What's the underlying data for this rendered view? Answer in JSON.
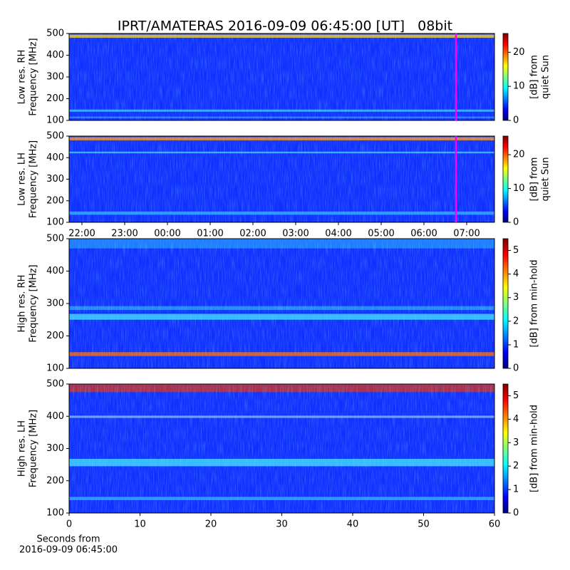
{
  "chart_data": [
    {
      "type": "heatmap",
      "title": "IPRT/AMATERAS 2016-09-09 06:45:00 [UT]   08bit",
      "ylabel": [
        "Low res. RH",
        "Frequency [MHz]"
      ],
      "ylim": [
        100,
        500
      ],
      "yticks": [
        100,
        200,
        300,
        400,
        500
      ],
      "xlim": [
        21.7,
        31.65
      ],
      "marker_x": 30.75,
      "marker_color": "#ff00ff",
      "clabel": [
        "[dB] from",
        "quiet Sun"
      ],
      "clim": [
        0,
        25.5
      ],
      "cticks": [
        0,
        10,
        20
      ]
    },
    {
      "type": "heatmap",
      "ylabel": [
        "Low res. LH",
        "Frequency [MHz]"
      ],
      "ylim": [
        100,
        500
      ],
      "yticks": [
        100,
        200,
        300,
        400,
        500
      ],
      "xlim": [
        21.7,
        31.65
      ],
      "marker_x": 30.75,
      "marker_color": "#ff00ff",
      "xticks": [
        {
          "value": 22,
          "label": "22:00"
        },
        {
          "value": 23,
          "label": "23:00"
        },
        {
          "value": 24,
          "label": "00:00"
        },
        {
          "value": 25,
          "label": "01:00"
        },
        {
          "value": 26,
          "label": "02:00"
        },
        {
          "value": 27,
          "label": "03:00"
        },
        {
          "value": 28,
          "label": "04:00"
        },
        {
          "value": 29,
          "label": "05:00"
        },
        {
          "value": 30,
          "label": "06:00"
        },
        {
          "value": 31,
          "label": "07:00"
        }
      ],
      "clabel": [
        "[dB] from",
        "quiet Sun"
      ],
      "clim": [
        0,
        25.5
      ],
      "cticks": [
        0,
        10,
        20
      ]
    },
    {
      "type": "heatmap",
      "ylabel": [
        "High res. RH",
        "Frequency [MHz]"
      ],
      "ylim": [
        100,
        500
      ],
      "yticks": [
        100,
        200,
        300,
        400,
        500
      ],
      "clabel": [
        "[dB] from min-hold"
      ],
      "clim": [
        0,
        5.5
      ],
      "cticks": [
        0,
        1,
        2,
        3,
        4,
        5
      ]
    },
    {
      "type": "heatmap",
      "ylabel": [
        "High res. LH",
        "Frequency [MHz]"
      ],
      "ylim": [
        100,
        500
      ],
      "yticks": [
        100,
        200,
        300,
        400,
        500
      ],
      "xlim": [
        0,
        60
      ],
      "xticks": [
        0,
        10,
        20,
        30,
        40,
        50,
        60
      ],
      "xlabel": [
        "Seconds from",
        "2016-09-09 06:45:00"
      ],
      "clabel": [
        "[dB] from min-hold"
      ],
      "clim": [
        0,
        5.5
      ],
      "cticks": [
        0,
        1,
        2,
        3,
        4,
        5
      ]
    }
  ]
}
